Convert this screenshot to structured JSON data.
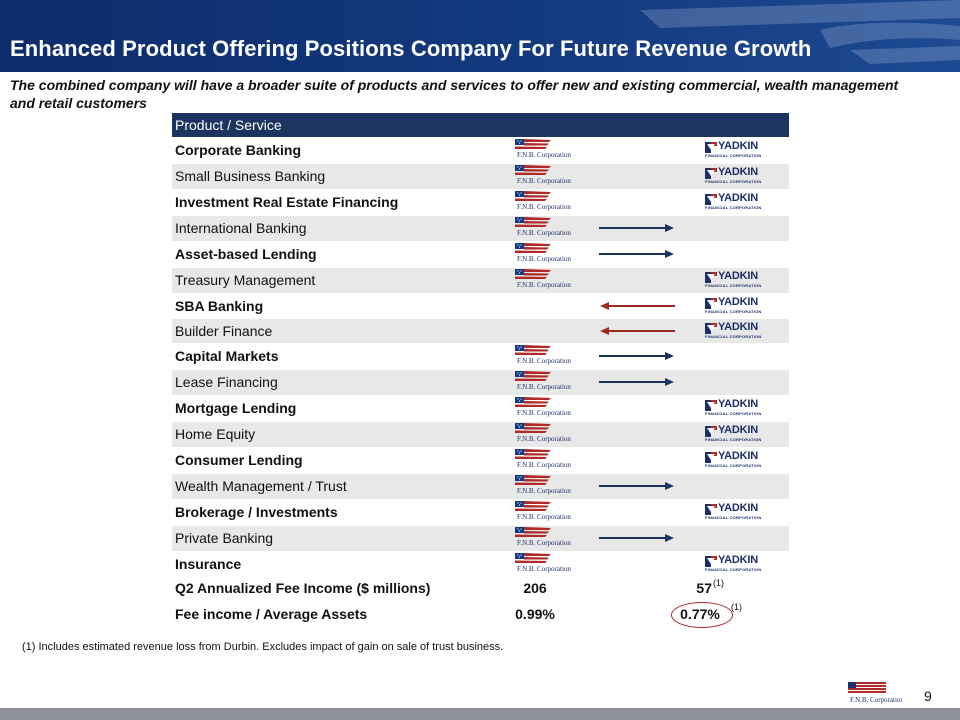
{
  "slide": {
    "title": "Enhanced Product Offering Positions Company For Future Revenue Growth",
    "subtitle": "The combined company will have a broader suite of products and services to offer new and existing commercial, wealth management and retail customers",
    "page_number": "9"
  },
  "brand": {
    "fnb_logo_text": "F.N.B. Corporation",
    "yadkin_logo_text": "YADKIN",
    "yadkin_logo_subtext": "FINANCIAL CORPORATION",
    "header_color": "#13397f",
    "table_header_color": "#1c3560",
    "arrow_blue": "#1c3560",
    "arrow_red": "#9b2a22"
  },
  "table": {
    "header": "Product / Service",
    "rows": [
      {
        "label": "Corporate Banking",
        "fnb": true,
        "yadkin": true,
        "arrow": "none"
      },
      {
        "label": "Small Business Banking",
        "fnb": true,
        "yadkin": true,
        "arrow": "none"
      },
      {
        "label": "Investment Real Estate Financing",
        "fnb": true,
        "yadkin": true,
        "arrow": "none"
      },
      {
        "label": "International Banking",
        "fnb": true,
        "yadkin": false,
        "arrow": "right"
      },
      {
        "label": "Asset-based Lending",
        "fnb": true,
        "yadkin": false,
        "arrow": "right"
      },
      {
        "label": "Treasury Management",
        "fnb": true,
        "yadkin": true,
        "arrow": "none"
      },
      {
        "label": "SBA Banking",
        "fnb": false,
        "yadkin": true,
        "arrow": "left"
      },
      {
        "label": "Builder Finance",
        "fnb": false,
        "yadkin": true,
        "arrow": "left"
      },
      {
        "label": "Capital Markets",
        "fnb": true,
        "yadkin": false,
        "arrow": "right"
      },
      {
        "label": "Lease Financing",
        "fnb": true,
        "yadkin": false,
        "arrow": "right"
      },
      {
        "label": "Mortgage Lending",
        "fnb": true,
        "yadkin": true,
        "arrow": "none"
      },
      {
        "label": "Home Equity",
        "fnb": true,
        "yadkin": true,
        "arrow": "none"
      },
      {
        "label": "Consumer Lending",
        "fnb": true,
        "yadkin": true,
        "arrow": "none"
      },
      {
        "label": "Wealth Management / Trust",
        "fnb": true,
        "yadkin": false,
        "arrow": "right"
      },
      {
        "label": "Brokerage / Investments",
        "fnb": true,
        "yadkin": true,
        "arrow": "none"
      },
      {
        "label": "Private Banking",
        "fnb": true,
        "yadkin": false,
        "arrow": "right"
      },
      {
        "label": "Insurance",
        "fnb": true,
        "yadkin": true,
        "arrow": "none"
      }
    ]
  },
  "summary": {
    "fee_income_label": "Q2 Annualized Fee Income ($ millions)",
    "fee_income_fnb": "206",
    "fee_income_yadkin": "57",
    "fee_income_note": "(1)",
    "ratio_label": "Fee income / Average Assets",
    "ratio_fnb": "0.99%",
    "ratio_yadkin": "0.77%",
    "ratio_note": "(1)"
  },
  "footnote": "(1) Includes estimated revenue loss from Durbin. Excludes impact of gain on sale of trust business."
}
